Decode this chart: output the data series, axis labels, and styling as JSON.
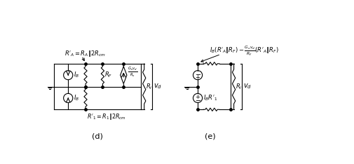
{
  "bg_color": "#ffffff",
  "line_color": "#000000",
  "text_color": "#000000",
  "label_d": "(d)",
  "label_e": "(e)",
  "fig_width": 5.05,
  "fig_height": 2.34,
  "dpi": 100
}
